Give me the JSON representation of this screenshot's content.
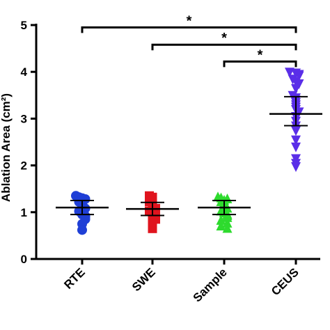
{
  "chart_data": {
    "type": "scatter",
    "ylabel": "Ablation Area (cm²)",
    "ylim": [
      0,
      5
    ],
    "yticks": [
      "0",
      "1",
      "2",
      "3",
      "4",
      "5"
    ],
    "categories": [
      "RTE",
      "SWE",
      "Sample",
      "CEUS"
    ],
    "series": [
      {
        "category": "RTE",
        "marker": "circle",
        "color": "#1f3fd6",
        "mean": 1.1,
        "error": [
          0.95,
          1.25
        ],
        "values": [
          1.35,
          1.32,
          1.3,
          1.28,
          1.25,
          1.22,
          1.2,
          1.18,
          1.15,
          1.12,
          1.1,
          1.08,
          1.05,
          1.02,
          1.0,
          0.98,
          0.95,
          0.92,
          0.9,
          0.85,
          0.75,
          0.62
        ]
      },
      {
        "category": "SWE",
        "marker": "square",
        "color": "#e0141e",
        "mean": 1.07,
        "error": [
          0.93,
          1.21
        ],
        "values": [
          1.35,
          1.32,
          1.28,
          1.25,
          1.22,
          1.2,
          1.18,
          1.15,
          1.12,
          1.1,
          1.08,
          1.05,
          1.02,
          1.0,
          0.98,
          0.95,
          0.92,
          0.9,
          0.85,
          0.78,
          0.65
        ]
      },
      {
        "category": "Sample",
        "marker": "triangle-up",
        "color": "#2edb2e",
        "mean": 1.1,
        "error": [
          0.95,
          1.25
        ],
        "values": [
          1.32,
          1.3,
          1.28,
          1.25,
          1.22,
          1.2,
          1.18,
          1.15,
          1.12,
          1.1,
          1.08,
          1.05,
          1.02,
          1.0,
          0.98,
          0.95,
          0.92,
          0.88,
          0.82,
          0.76,
          0.7,
          0.65
        ]
      },
      {
        "category": "CEUS",
        "marker": "triangle-down",
        "color": "#5a2ee8",
        "mean": 3.1,
        "error": [
          2.85,
          3.47
        ],
        "values": [
          4.0,
          3.98,
          3.95,
          3.92,
          3.85,
          3.8,
          3.75,
          3.65,
          3.5,
          3.45,
          3.4,
          3.35,
          3.3,
          3.25,
          3.2,
          3.15,
          3.05,
          2.95,
          2.85,
          2.75,
          2.55,
          2.4,
          2.15,
          2.05,
          1.98
        ]
      }
    ],
    "significance": [
      {
        "from": "RTE",
        "to": "CEUS",
        "y": 4.95,
        "label": "*"
      },
      {
        "from": "SWE",
        "to": "CEUS",
        "y": 4.58,
        "label": "*"
      },
      {
        "from": "Sample",
        "to": "CEUS",
        "y": 4.22,
        "label": "*"
      }
    ]
  }
}
